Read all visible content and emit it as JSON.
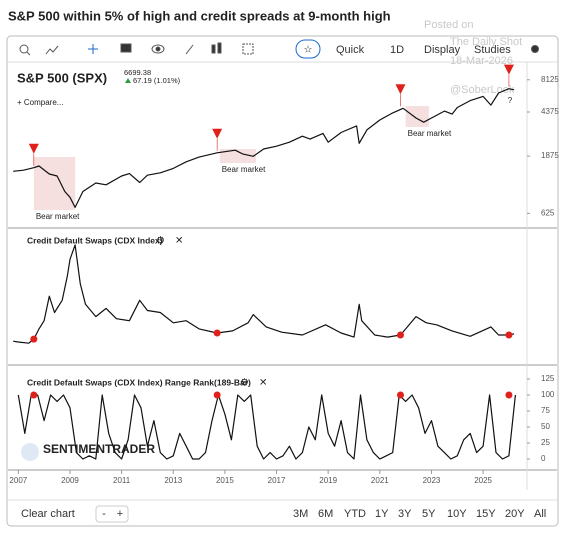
{
  "header": {
    "title": "S&P 500 within 5% of high and credit spreads at 9-month high",
    "watermark": [
      "Posted on",
      "The Daily Shot",
      "18-Mar-2026",
      "@SoberLook"
    ],
    "brand": "SENTIMENTRADER"
  },
  "toolbar": {
    "buttons": [
      "Quick",
      "1D",
      "Display",
      "Studies"
    ]
  },
  "chart_data": [
    {
      "type": "line",
      "title": "S&P 500 (SPX)",
      "last_price": 6699.38,
      "change_label": "67.19 (1.01%)",
      "compare": "+ Compare...",
      "log_scale": true,
      "color": "#111111",
      "xlim": [
        2006.6,
        2026.7
      ],
      "ylim": [
        490,
        11000
      ],
      "yticks": [
        625,
        1875,
        4375,
        8125
      ],
      "x": [
        2006.8,
        2007.2,
        2007.6,
        2007.8,
        2008.2,
        2008.5,
        2008.8,
        2009.0,
        2009.2,
        2009.5,
        2010.0,
        2010.4,
        2011.0,
        2011.3,
        2011.7,
        2012.0,
        2012.5,
        2013.0,
        2013.5,
        2014.0,
        2014.7,
        2015.4,
        2015.7,
        2016.1,
        2016.5,
        2017.0,
        2017.5,
        2018.0,
        2018.3,
        2018.8,
        2019.0,
        2019.5,
        2020.1,
        2020.2,
        2020.5,
        2021.0,
        2021.5,
        2021.9,
        2022.4,
        2022.7,
        2023.0,
        2023.5,
        2023.8,
        2024.0,
        2024.5,
        2025.0,
        2025.3,
        2025.6,
        2026.0,
        2026.2
      ],
      "values": [
        1400,
        1430,
        1500,
        1550,
        1330,
        1280,
        950,
        850,
        700,
        950,
        1120,
        1080,
        1280,
        1340,
        1130,
        1300,
        1360,
        1480,
        1680,
        1840,
        2000,
        2100,
        1950,
        1870,
        2150,
        2270,
        2450,
        2750,
        2600,
        2900,
        2450,
        2950,
        3350,
        2400,
        3100,
        3750,
        4300,
        4700,
        3900,
        3600,
        3900,
        4450,
        4200,
        4770,
        5450,
        5900,
        5000,
        6300,
        6850,
        6700
      ],
      "signals": {
        "color": "#e0201b",
        "x": [
          2007.6,
          2014.7,
          2021.8,
          2026.0
        ],
        "values": [
          1500,
          2000,
          4700,
          6850
        ]
      },
      "annotations": [
        {
          "label": "Bear market",
          "x": [
            2007.6,
            2009.2
          ]
        },
        {
          "label": "Bear market",
          "x": [
            2014.8,
            2016.2
          ]
        },
        {
          "label": "Bear market",
          "x": [
            2022.0,
            2022.9
          ]
        }
      ],
      "note": "?"
    },
    {
      "type": "line",
      "title": "Credit Default Swaps (CDX Index)",
      "color": "#111111",
      "xlim": [
        2006.6,
        2026.7
      ],
      "ylim": [
        -6,
        297
      ],
      "x": [
        2006.8,
        2007.0,
        2007.4,
        2007.6,
        2007.8,
        2008.0,
        2008.2,
        2008.4,
        2008.7,
        2008.9,
        2009.0,
        2009.2,
        2009.4,
        2009.6,
        2010.0,
        2010.4,
        2010.8,
        2011.3,
        2011.7,
        2012.0,
        2012.5,
        2013.0,
        2013.5,
        2014.0,
        2014.7,
        2015.3,
        2015.9,
        2016.1,
        2016.6,
        2017.2,
        2018.0,
        2018.9,
        2019.5,
        2020.0,
        2020.2,
        2020.3,
        2020.8,
        2021.3,
        2021.8,
        2022.4,
        2022.8,
        2023.2,
        2023.8,
        2024.5,
        2025.3,
        2025.6,
        2026.0,
        2026.2
      ],
      "values": [
        40,
        38,
        35,
        45,
        70,
        90,
        150,
        110,
        140,
        200,
        240,
        275,
        180,
        130,
        100,
        120,
        95,
        90,
        140,
        115,
        110,
        85,
        90,
        70,
        60,
        65,
        85,
        105,
        75,
        62,
        55,
        80,
        60,
        50,
        130,
        90,
        55,
        50,
        55,
        100,
        85,
        80,
        65,
        52,
        75,
        55,
        55,
        58
      ],
      "signals": {
        "color": "#e0201b",
        "x": [
          2007.6,
          2014.7,
          2021.8,
          2026.0
        ],
        "values": [
          45,
          60,
          55,
          55
        ]
      }
    },
    {
      "type": "line",
      "title": "Credit Default Swaps (CDX Index) Range Rank(189-Bar)",
      "color": "#111111",
      "xlim": [
        2006.6,
        2026.7
      ],
      "ylim": [
        -14,
        139
      ],
      "yticks": [
        0,
        25,
        50,
        75,
        100,
        125
      ],
      "xticks": [
        2007,
        2009,
        2011,
        2013,
        2015,
        2017,
        2019,
        2021,
        2023,
        2025
      ],
      "x": [
        2007.0,
        2007.25,
        2007.5,
        2007.75,
        2008.0,
        2008.25,
        2008.5,
        2008.75,
        2009.0,
        2009.25,
        2009.5,
        2009.75,
        2010.0,
        2010.25,
        2010.5,
        2010.75,
        2011.0,
        2011.25,
        2011.5,
        2011.75,
        2012.0,
        2012.25,
        2012.5,
        2012.75,
        2013.0,
        2013.25,
        2013.5,
        2013.75,
        2014.0,
        2014.25,
        2014.5,
        2014.75,
        2015.0,
        2015.25,
        2015.5,
        2015.75,
        2016.0,
        2016.25,
        2016.5,
        2016.75,
        2017.0,
        2017.25,
        2017.5,
        2017.75,
        2018.0,
        2018.25,
        2018.5,
        2018.75,
        2019.0,
        2019.25,
        2019.5,
        2019.75,
        2020.0,
        2020.25,
        2020.5,
        2020.75,
        2021.0,
        2021.25,
        2021.5,
        2021.75,
        2022.0,
        2022.25,
        2022.5,
        2022.75,
        2023.0,
        2023.25,
        2023.5,
        2023.75,
        2024.0,
        2024.25,
        2024.5,
        2024.75,
        2025.0,
        2025.25,
        2025.5,
        2025.75,
        2026.0,
        2026.25
      ],
      "values": [
        100,
        40,
        100,
        100,
        60,
        100,
        90,
        100,
        80,
        10,
        0,
        5,
        0,
        100,
        40,
        10,
        0,
        30,
        100,
        80,
        20,
        60,
        10,
        0,
        5,
        40,
        20,
        0,
        0,
        10,
        60,
        100,
        70,
        30,
        100,
        90,
        100,
        20,
        0,
        10,
        0,
        5,
        20,
        0,
        10,
        50,
        30,
        100,
        40,
        20,
        60,
        10,
        0,
        100,
        30,
        10,
        0,
        5,
        10,
        100,
        90,
        100,
        80,
        40,
        60,
        20,
        10,
        0,
        5,
        30,
        40,
        10,
        20,
        100,
        10,
        0,
        5,
        100
      ],
      "signals": {
        "color": "#e0201b",
        "x": [
          2007.6,
          2014.7,
          2021.8,
          2026.0
        ],
        "values": [
          100,
          100,
          100,
          100
        ]
      }
    }
  ],
  "footer": {
    "clear": "Clear chart",
    "zoom": [
      "-",
      "+"
    ],
    "ranges": [
      "3M",
      "6M",
      "YTD",
      "1Y",
      "3Y",
      "5Y",
      "10Y",
      "15Y",
      "20Y",
      "All"
    ]
  }
}
